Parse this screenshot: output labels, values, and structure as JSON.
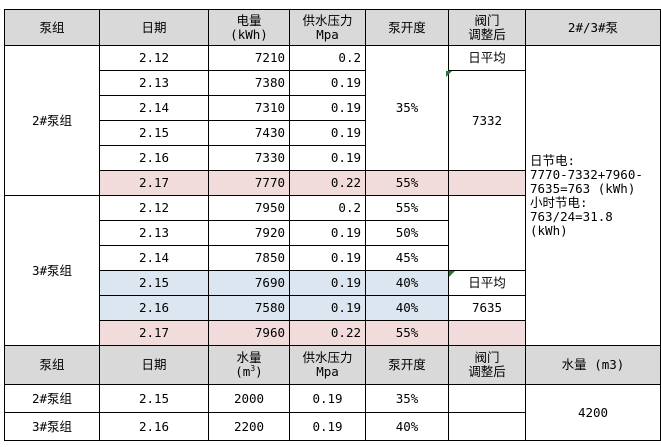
{
  "header1": {
    "group": "泵组",
    "date": "日期",
    "power": "电量",
    "power_unit": "(kWh)",
    "pressure": "供水压力",
    "pressure_unit": "Mpa",
    "opening": "泵开度",
    "valve": "阀门",
    "valve2": "调整后",
    "pumps": "2#/3#泵"
  },
  "pump2": {
    "name": "2#泵组",
    "rows": [
      {
        "date": "2.12",
        "power": "7210",
        "pressure": "0.2"
      },
      {
        "date": "2.13",
        "power": "7380",
        "pressure": "0.19"
      },
      {
        "date": "2.14",
        "power": "7310",
        "pressure": "0.19"
      },
      {
        "date": "2.15",
        "power": "7430",
        "pressure": "0.19"
      },
      {
        "date": "2.16",
        "power": "7330",
        "pressure": "0.19"
      },
      {
        "date": "2.17",
        "power": "7770",
        "pressure": "0.22",
        "opening": "55%"
      }
    ],
    "opening_merged": "35%",
    "avg_label": "日平均",
    "avg_value": "7332"
  },
  "pump3": {
    "name": "3#泵组",
    "rows": [
      {
        "date": "2.12",
        "power": "7950",
        "pressure": "0.2",
        "opening": "55%"
      },
      {
        "date": "2.13",
        "power": "7920",
        "pressure": "0.19",
        "opening": "50%"
      },
      {
        "date": "2.14",
        "power": "7850",
        "pressure": "0.19",
        "opening": "45%"
      },
      {
        "date": "2.15",
        "power": "7690",
        "pressure": "0.19",
        "opening": "40%"
      },
      {
        "date": "2.16",
        "power": "7580",
        "pressure": "0.19",
        "opening": "40%"
      },
      {
        "date": "2.17",
        "power": "7960",
        "pressure": "0.22",
        "opening": "55%"
      }
    ],
    "avg_label": "日平均",
    "avg_value": "7635"
  },
  "note": {
    "l1": "日节电:",
    "l2": "7770-7332+7960-",
    "l3": "7635=763 (kWh)",
    "l4": "小时节电:",
    "l5": "763/24=31.8",
    "l6": " (kWh)"
  },
  "header2": {
    "group": "泵组",
    "date": "日期",
    "water": "水量",
    "water_unit_pre": "(m",
    "water_unit_sup": "3",
    "water_unit_post": ")",
    "pressure": "供水压力",
    "pressure_unit": "Mpa",
    "opening": "泵开度",
    "valve": "阀门",
    "valve2": "调整后",
    "water_total": "水量 (m3)"
  },
  "water_rows": [
    {
      "group": "2#泵组",
      "date": "2.15",
      "water": "2000",
      "pressure": "0.19",
      "opening": "35%"
    },
    {
      "group": "3#泵组",
      "date": "2.16",
      "water": "2200",
      "pressure": "0.19",
      "opening": "40%"
    }
  ],
  "water_total": "4200",
  "colors": {
    "header": "#d9d9d9",
    "pink": "#f2dcdb",
    "blue": "#dce6f1",
    "marker": "#1e7b34"
  }
}
